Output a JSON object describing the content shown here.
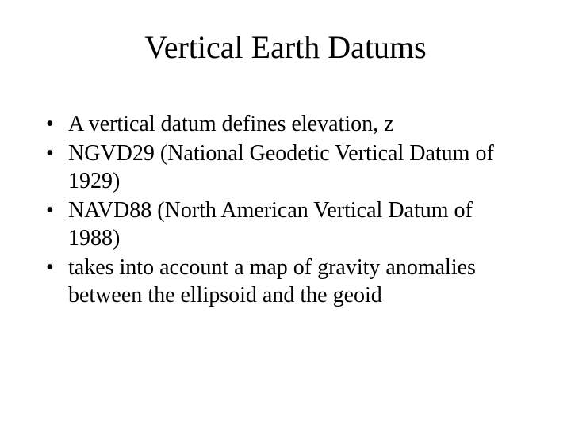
{
  "slide": {
    "title": "Vertical Earth Datums",
    "title_fontsize": 40,
    "body_fontsize": 28,
    "text_color": "#000000",
    "background_color": "#ffffff",
    "font_family": "Times New Roman",
    "bullets": [
      "A vertical datum defines elevation, z",
      "NGVD29 (National Geodetic Vertical Datum of 1929)",
      "NAVD88 (North American Vertical Datum of 1988)",
      "takes into account a map of gravity anomalies between the ellipsoid and the geoid"
    ]
  }
}
